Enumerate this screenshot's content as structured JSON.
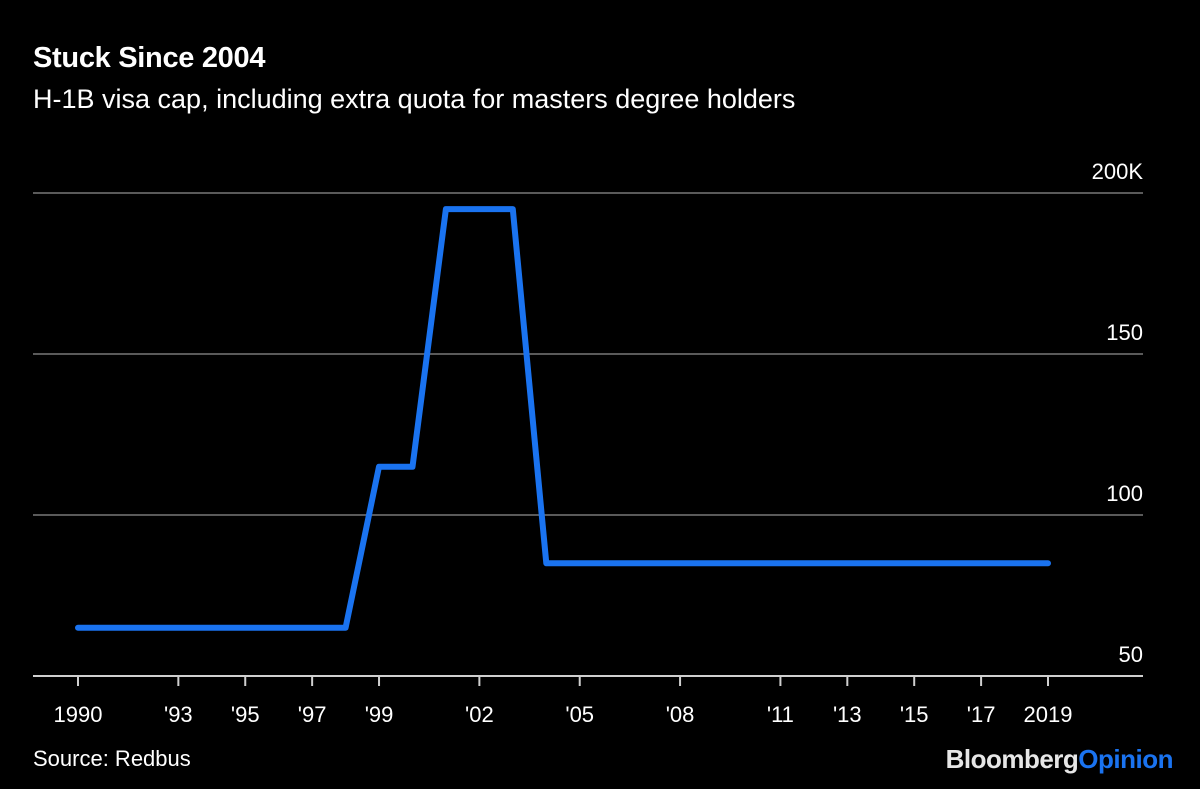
{
  "header": {
    "title": "Stuck Since 2004",
    "subtitle": "H-1B visa cap, including extra quota for masters degree holders"
  },
  "footer": {
    "source": "Source: Redbus",
    "brand_part1": "Bloomberg",
    "brand_part2": "Opinion"
  },
  "colors": {
    "background": "#000000",
    "line": "#1a73f0",
    "gridline": "#5a5a5a",
    "axis": "#cfcfcf",
    "brand_accent": "#1a73f0"
  },
  "chart_data": {
    "type": "line",
    "title": "Stuck Since 2004",
    "subtitle": "H-1B visa cap, including extra quota for masters degree holders",
    "xlabel": "",
    "ylabel": "",
    "ylim": [
      50,
      200
    ],
    "y_ticks": [
      {
        "value": 50,
        "label": "50"
      },
      {
        "value": 100,
        "label": "100"
      },
      {
        "value": 150,
        "label": "150"
      },
      {
        "value": 200,
        "label": "200K"
      }
    ],
    "x_ticks": [
      {
        "year": 1990,
        "label": "1990"
      },
      {
        "year": 1993,
        "label": "'93"
      },
      {
        "year": 1995,
        "label": "'95"
      },
      {
        "year": 1997,
        "label": "'97"
      },
      {
        "year": 1999,
        "label": "'99"
      },
      {
        "year": 2002,
        "label": "'02"
      },
      {
        "year": 2005,
        "label": "'05"
      },
      {
        "year": 2008,
        "label": "'08"
      },
      {
        "year": 2011,
        "label": "'11"
      },
      {
        "year": 2013,
        "label": "'13"
      },
      {
        "year": 2015,
        "label": "'15"
      },
      {
        "year": 2017,
        "label": "'17"
      },
      {
        "year": 2019,
        "label": "2019"
      }
    ],
    "grid": true,
    "legend": null,
    "series": [
      {
        "name": "H-1B visa cap (thousands)",
        "x": [
          1990,
          1998,
          1999,
          2000,
          2001,
          2003,
          2004,
          2019
        ],
        "values": [
          65,
          65,
          115,
          115,
          195,
          195,
          85,
          85
        ]
      }
    ],
    "source": "Source: Redbus"
  }
}
